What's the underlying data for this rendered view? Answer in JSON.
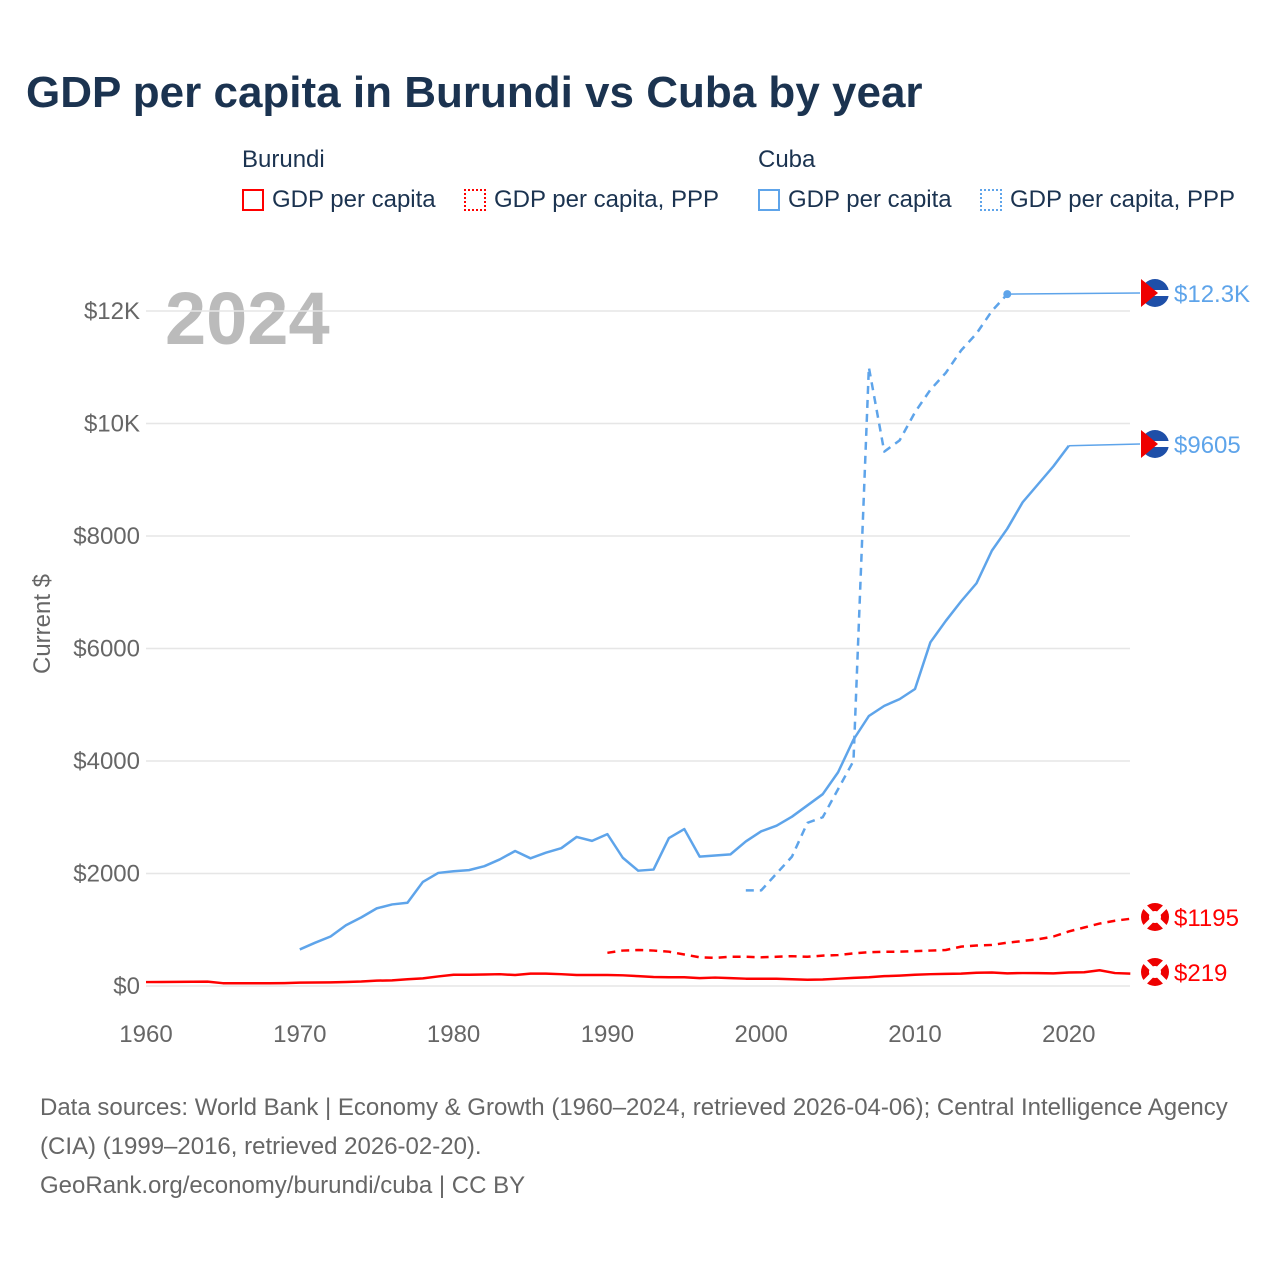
{
  "title": "GDP per capita in Burundi vs Cuba by year",
  "legend": {
    "groups": [
      {
        "name": "Burundi",
        "items": [
          "GDP per capita",
          "GDP per capita, PPP"
        ]
      },
      {
        "name": "Cuba",
        "items": [
          "GDP per capita",
          "GDP per capita, PPP"
        ]
      }
    ]
  },
  "year_label": "2024",
  "sources": [
    "Data sources: World Bank | Economy & Growth (1960–2024, retrieved 2026-04-06); Central Intelligence Agency (CIA) (1999–2016, retrieved 2026-02-20).",
    "GeoRank.org/economy/burundi/cuba | CC BY"
  ],
  "colors": {
    "burundi": "#ff0000",
    "cuba": "#5ea4ea"
  },
  "chart_data": {
    "type": "line",
    "title": "GDP per capita in Burundi vs Cuba by year",
    "ylabel": "Current $",
    "xlabel": "",
    "xlim": [
      1960,
      2024
    ],
    "ylim": [
      0,
      13000
    ],
    "grid": true,
    "x_ticks": [
      1960,
      1970,
      1980,
      1990,
      2000,
      2010,
      2020
    ],
    "y_ticks": [
      {
        "v": 0,
        "label": "$0"
      },
      {
        "v": 2000,
        "label": "$2000"
      },
      {
        "v": 4000,
        "label": "$4000"
      },
      {
        "v": 6000,
        "label": "$6000"
      },
      {
        "v": 8000,
        "label": "$8000"
      },
      {
        "v": 10000,
        "label": "$10K"
      },
      {
        "v": 12000,
        "label": "$12K"
      }
    ],
    "series": [
      {
        "name": "Burundi GDP per capita",
        "color": "#ff0000",
        "dash": false,
        "start": 1960,
        "end_label": "$219",
        "values": [
          70,
          72,
          73,
          75,
          78,
          50,
          50,
          50,
          50,
          52,
          60,
          62,
          65,
          72,
          80,
          95,
          100,
          120,
          135,
          170,
          200,
          200,
          205,
          210,
          195,
          220,
          220,
          210,
          195,
          195,
          195,
          190,
          175,
          160,
          155,
          155,
          140,
          150,
          140,
          130,
          130,
          128,
          120,
          112,
          115,
          130,
          145,
          155,
          175,
          185,
          200,
          210,
          215,
          220,
          235,
          240,
          225,
          230,
          230,
          225,
          240,
          245,
          280,
          230,
          219
        ]
      },
      {
        "name": "Burundi GDP per capita, PPP",
        "color": "#ff0000",
        "dash": true,
        "start": 1990,
        "end_label": "$1195",
        "values": [
          590,
          630,
          640,
          630,
          610,
          560,
          510,
          500,
          520,
          520,
          510,
          520,
          530,
          520,
          540,
          550,
          580,
          600,
          610,
          610,
          620,
          630,
          640,
          700,
          720,
          730,
          770,
          800,
          830,
          880,
          970,
          1040,
          1110,
          1160,
          1195
        ]
      },
      {
        "name": "Cuba GDP per capita",
        "color": "#5ea4ea",
        "dash": false,
        "start": 1970,
        "end_label": "$9605",
        "values": [
          650,
          770,
          880,
          1080,
          1220,
          1380,
          1450,
          1480,
          1850,
          2010,
          2040,
          2060,
          2130,
          2250,
          2400,
          2270,
          2370,
          2450,
          2650,
          2580,
          2700,
          2280,
          2050,
          2070,
          2630,
          2790,
          2300,
          2320,
          2340,
          2570,
          2750,
          2850,
          3010,
          3210,
          3410,
          3800,
          4380,
          4800,
          4980,
          5100,
          5280,
          6110,
          6490,
          6840,
          7160,
          7740,
          8130,
          8600,
          8920,
          9240,
          9605
        ]
      },
      {
        "name": "Cuba GDP per capita, PPP",
        "color": "#5ea4ea",
        "dash": true,
        "start": 1999,
        "end_label": "$12.3K",
        "values": [
          1700,
          1700,
          2000,
          2300,
          2900,
          3000,
          3500,
          4000,
          11000,
          9500,
          9700,
          10200,
          10600,
          10900,
          11300,
          11600,
          12000,
          12300
        ]
      }
    ]
  }
}
